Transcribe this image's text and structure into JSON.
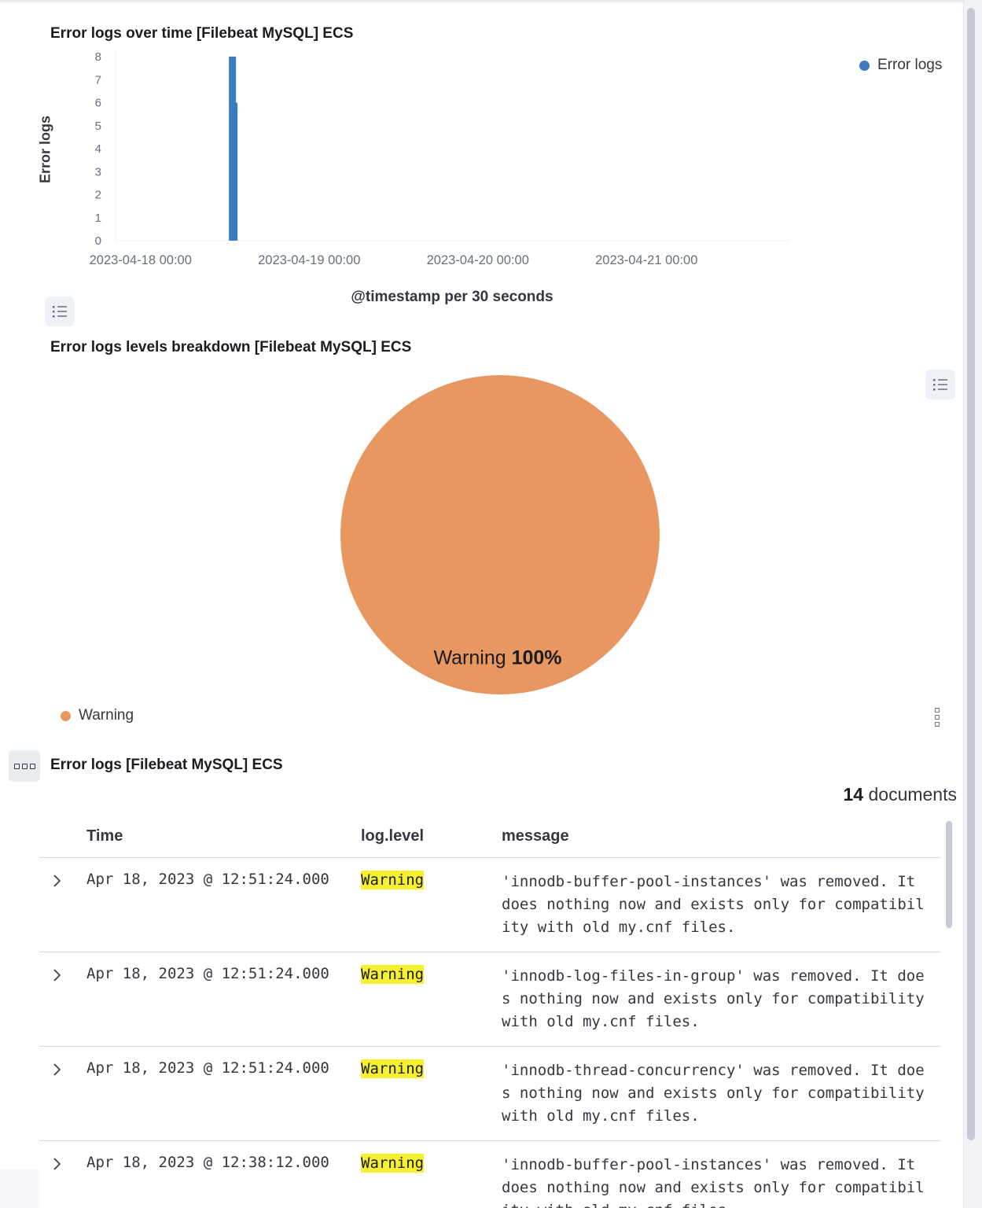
{
  "bar_panel": {
    "title": "Error logs over time [Filebeat MySQL] ECS",
    "legend_label": "Error logs",
    "legend_color": "#3b7bbf",
    "list_icon": "list-icon"
  },
  "pie_panel": {
    "title": "Error logs levels breakdown [Filebeat MySQL] ECS",
    "slice_label": "Warning",
    "slice_percent": "100%",
    "legend_label": "Warning",
    "slice_color": "#e7975f",
    "list_icon": "list-icon",
    "menu_icon": "vertical-dots-icon"
  },
  "table_panel": {
    "title": "Error logs [Filebeat MySQL] ECS",
    "menu_icon": "horizontal-dots-icon",
    "doc_count": "14",
    "doc_count_suffix": " documents",
    "columns": [
      "Time",
      "log.level",
      "message"
    ],
    "rows": [
      {
        "time": "Apr 18, 2023 @ 12:51:24.000",
        "level": "Warning",
        "message": "'innodb-buffer-pool-instances' was removed. It does nothing now and exists only for compatibility with old my.cnf files."
      },
      {
        "time": "Apr 18, 2023 @ 12:51:24.000",
        "level": "Warning",
        "message": "'innodb-log-files-in-group' was removed. It does nothing now and exists only for compatibility with old my.cnf files."
      },
      {
        "time": "Apr 18, 2023 @ 12:51:24.000",
        "level": "Warning",
        "message": "'innodb-thread-concurrency' was removed. It does nothing now and exists only for compatibility with old my.cnf files."
      },
      {
        "time": "Apr 18, 2023 @ 12:38:12.000",
        "level": "Warning",
        "message": "'innodb-buffer-pool-instances' was removed. It does nothing now and exists only for compatibility with old my.cnf files."
      }
    ]
  },
  "chart_data": [
    {
      "type": "bar",
      "title": "Error logs over time [Filebeat MySQL] ECS",
      "xlabel": "@timestamp per 30 seconds",
      "ylabel": "Error logs",
      "x_ticks": [
        "2023-04-18 00:00",
        "2023-04-19 00:00",
        "2023-04-20 00:00",
        "2023-04-21 00:00"
      ],
      "x_range": [
        "2023-04-17 20:00",
        "2023-04-21 20:00"
      ],
      "y_ticks": [
        0,
        1,
        2,
        3,
        4,
        5,
        6,
        7,
        8
      ],
      "ylim": [
        0,
        8
      ],
      "grid": false,
      "legend": "top-right",
      "series": [
        {
          "name": "Error logs",
          "color": "#3b7bbf",
          "x": [
            "2023-04-18 12:38",
            "2023-04-18 12:51"
          ],
          "values": [
            8,
            6
          ]
        }
      ]
    },
    {
      "type": "pie",
      "title": "Error logs levels breakdown [Filebeat MySQL] ECS",
      "legend": "bottom-left",
      "slices": [
        {
          "label": "Warning",
          "value": 100,
          "color": "#e7975f"
        }
      ]
    }
  ]
}
